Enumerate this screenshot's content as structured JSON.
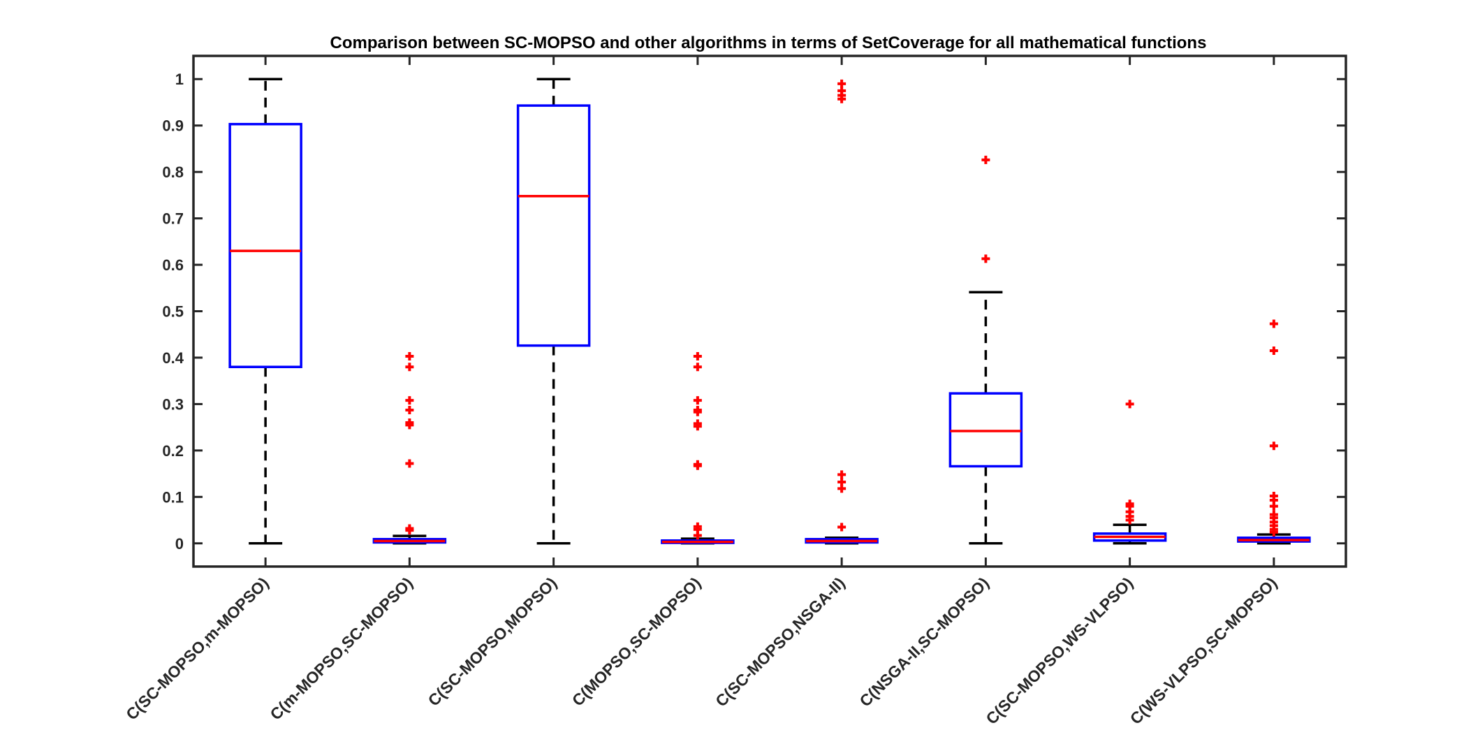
{
  "chart_data": {
    "type": "box",
    "title": "Comparison between SC-MOPSO and other algorithms in terms of SetCoverage for all mathematical functions",
    "xlabel": "",
    "ylabel": "",
    "ylim": [
      -0.05,
      1.05
    ],
    "yticks": [
      0,
      0.1,
      0.2,
      0.3,
      0.4,
      0.5,
      0.6,
      0.7,
      0.8,
      0.9,
      1
    ],
    "ytick_labels": [
      "0",
      "0.1",
      "0.2",
      "0.3",
      "0.4",
      "0.5",
      "0.6",
      "0.7",
      "0.8",
      "0.9",
      "1"
    ],
    "grid": false,
    "colors": {
      "box": "#0000ff",
      "median": "#ff0000",
      "whisker": "#000000",
      "outlier": "#ff0000",
      "axis": "#262626"
    },
    "categories": [
      "C(SC-MOPSO,m-MOPSO)",
      "C(m-MOPSO,SC-MOPSO)",
      "C(SC-MOPSO,MOPSO)",
      "C(MOPSO,SC-MOPSO)",
      "C(SC-MOPSO,NSGA-II)",
      "C(NSGA-II,SC-MOPSO)",
      "C(SC-MOPSO,WS-VLPSO)",
      "C(WS-VLPSO,SC-MOPSO)"
    ],
    "boxes": [
      {
        "whisker_low": 0,
        "q1": 0.38,
        "median": 0.63,
        "q3": 0.903,
        "whisker_high": 1,
        "outliers": []
      },
      {
        "whisker_low": 0,
        "q1": 0.002,
        "median": 0.005,
        "q3": 0.009,
        "whisker_high": 0.016,
        "outliers": [
          0.028,
          0.032,
          0.172,
          0.255,
          0.26,
          0.287,
          0.308,
          0.38,
          0.403
        ]
      },
      {
        "whisker_low": 0,
        "q1": 0.426,
        "median": 0.748,
        "q3": 0.943,
        "whisker_high": 1,
        "outliers": []
      },
      {
        "whisker_low": 0,
        "q1": 0.001,
        "median": 0.003,
        "q3": 0.006,
        "whisker_high": 0.01,
        "outliers": [
          0.017,
          0.03,
          0.036,
          0.167,
          0.17,
          0.252,
          0.258,
          0.283,
          0.287,
          0.308,
          0.38,
          0.403
        ]
      },
      {
        "whisker_low": 0,
        "q1": 0.002,
        "median": 0.005,
        "q3": 0.009,
        "whisker_high": 0.012,
        "outliers": [
          0.035,
          0.118,
          0.132,
          0.148,
          0.957,
          0.965,
          0.975,
          0.99
        ]
      },
      {
        "whisker_low": 0,
        "q1": 0.166,
        "median": 0.242,
        "q3": 0.323,
        "whisker_high": 0.541,
        "outliers": [
          0.613,
          0.826
        ]
      },
      {
        "whisker_low": 0,
        "q1": 0.006,
        "median": 0.014,
        "q3": 0.021,
        "whisker_high": 0.04,
        "outliers": [
          0.05,
          0.058,
          0.068,
          0.08,
          0.085,
          0.3
        ]
      },
      {
        "whisker_low": 0,
        "q1": 0.004,
        "median": 0.007,
        "q3": 0.012,
        "whisker_high": 0.019,
        "outliers": [
          0.024,
          0.03,
          0.038,
          0.046,
          0.055,
          0.062,
          0.08,
          0.093,
          0.102,
          0.21,
          0.415,
          0.473
        ]
      }
    ]
  }
}
